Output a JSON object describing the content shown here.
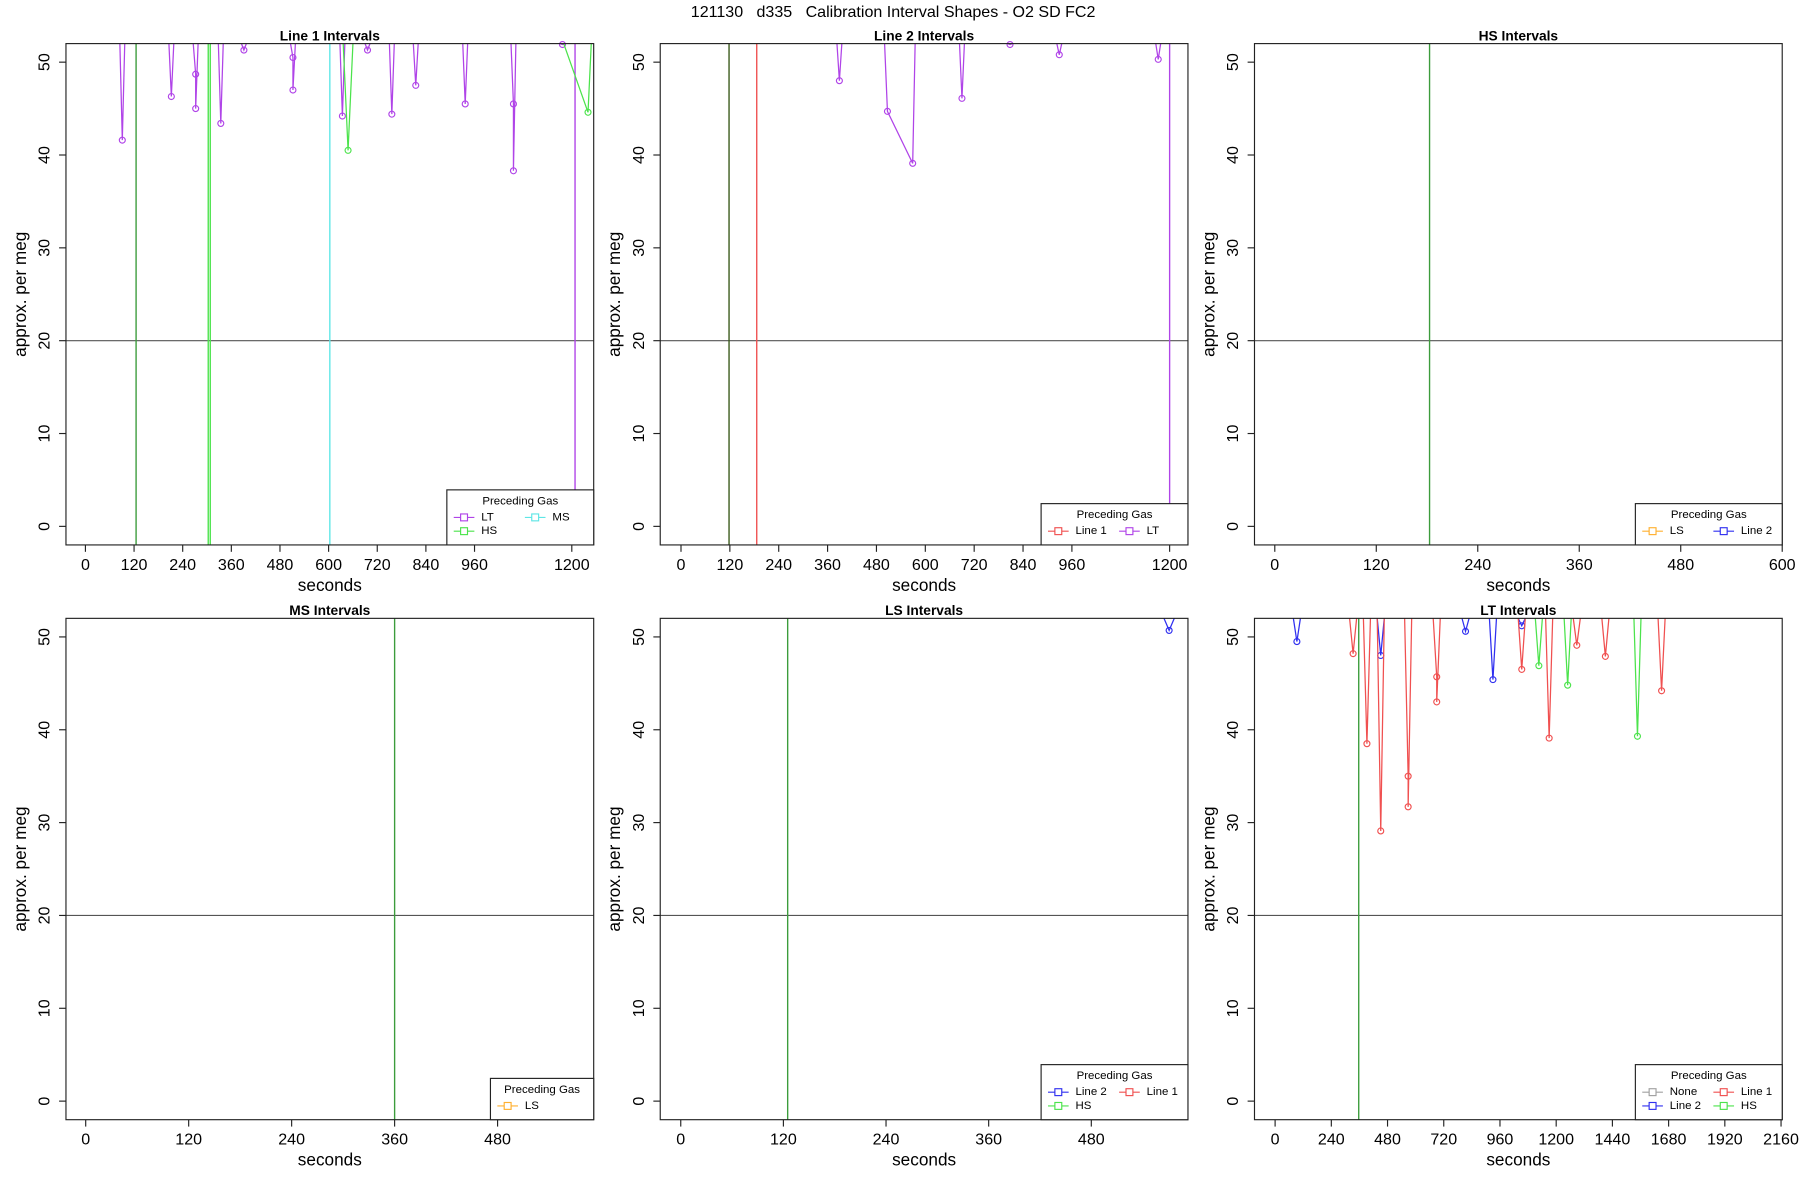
{
  "title": "121130   d335   Calibration Interval Shapes - O2 SD FC2",
  "chart_data": [
    {
      "type": "line",
      "title": "Line 1 Intervals",
      "x_label": "seconds",
      "y_label": "approx. per meg",
      "xlim": [
        -48,
        1254
      ],
      "ylim": [
        -2,
        52
      ],
      "xticks": [
        0,
        120,
        240,
        360,
        480,
        600,
        720,
        840,
        960,
        1200
      ],
      "yticks": [
        0,
        10,
        20,
        30,
        40,
        50
      ],
      "hline": 20,
      "legend_title": "Preceding Gas",
      "legend_position": "bottomright",
      "vlines": [
        {
          "x": 125,
          "color": "#3c9c3c"
        },
        {
          "x": 303,
          "color": "#4ce34c"
        },
        {
          "x": 308,
          "color": "#4ce34c"
        },
        {
          "x": 603,
          "color": "#5ee6e6"
        },
        {
          "x": 1208,
          "color": "#b044e8"
        }
      ],
      "series": [
        {
          "name": "LT",
          "color": "#b044e8",
          "x": [
            85,
            91,
            97,
            null,
            206,
            212,
            218,
            null,
            266,
            272,
            272,
            278,
            null,
            328,
            334,
            340,
            null,
            385,
            391,
            397,
            null,
            506,
            512,
            512,
            518,
            null,
            628,
            634,
            640,
            null,
            690,
            696,
            702,
            null,
            750,
            756,
            762,
            null,
            809,
            815,
            821,
            null,
            931,
            937,
            943,
            null,
            1050,
            1056,
            1056,
            1062,
            null,
            1171,
            1177,
            1183
          ],
          "values": [
            52,
            41.6,
            52,
            null,
            52,
            46.3,
            52,
            null,
            52,
            48.7,
            45,
            52,
            null,
            52,
            43.4,
            52,
            null,
            52,
            51.3,
            52,
            null,
            52,
            50.5,
            47,
            52,
            null,
            52,
            44.2,
            52,
            null,
            52,
            51.3,
            52,
            null,
            52,
            44.4,
            52,
            null,
            52,
            47.5,
            52,
            null,
            52,
            45.5,
            52,
            null,
            52,
            45.5,
            38.3,
            52,
            null,
            52,
            51.9,
            52
          ]
        },
        {
          "name": "HS",
          "color": "#4ce34c",
          "x": [
            636,
            648,
            660,
            null,
            1180,
            1240,
            1248
          ],
          "values": [
            52,
            40.5,
            52,
            null,
            52,
            44.6,
            52
          ]
        },
        {
          "name": "MS",
          "color": "#5ee6e6",
          "x": [],
          "values": []
        }
      ]
    },
    {
      "type": "line",
      "title": "Line 2 Intervals",
      "x_label": "seconds",
      "y_label": "approx. per meg",
      "xlim": [
        -51,
        1245
      ],
      "ylim": [
        -2,
        52
      ],
      "xticks": [
        0,
        120,
        240,
        360,
        480,
        600,
        720,
        840,
        960,
        1200
      ],
      "yticks": [
        0,
        10,
        20,
        30,
        40,
        50
      ],
      "hline": 20,
      "legend_title": "Preceding Gas",
      "legend_position": "bottomright",
      "vlines": [
        {
          "x": 118,
          "color": "#3a5a1a"
        },
        {
          "x": 186,
          "color": "#f05050"
        },
        {
          "x": 1200,
          "color": "#b044e8"
        }
      ],
      "series": [
        {
          "name": "Line 1",
          "color": "#f05050",
          "x": [],
          "values": []
        },
        {
          "name": "LT",
          "color": "#b044e8",
          "x": [
            383,
            389,
            395,
            null,
            500,
            507,
            569,
            575,
            null,
            684,
            690,
            696,
            null,
            802,
            808,
            814,
            null,
            923,
            929,
            935,
            null,
            1166,
            1172,
            1178
          ],
          "values": [
            52,
            48,
            52,
            null,
            52,
            44.7,
            39.1,
            52,
            null,
            52,
            46.1,
            52,
            null,
            52,
            51.9,
            52,
            null,
            52,
            50.8,
            52,
            null,
            52,
            50.3,
            52
          ]
        }
      ]
    },
    {
      "type": "line",
      "title": "HS Intervals",
      "x_label": "seconds",
      "y_label": "approx. per meg",
      "xlim": [
        -24,
        600
      ],
      "ylim": [
        -2,
        52
      ],
      "xticks": [
        0,
        120,
        240,
        360,
        480,
        600
      ],
      "yticks": [
        0,
        10,
        20,
        30,
        40,
        50
      ],
      "hline": 20,
      "legend_title": "Preceding Gas",
      "legend_position": "bottomright",
      "vlines": [
        {
          "x": 183,
          "color": "#3c9c3c"
        }
      ],
      "series": [
        {
          "name": "LS",
          "color": "#ffb030",
          "x": [],
          "values": []
        },
        {
          "name": "Line 2",
          "color": "#3030f0",
          "x": [],
          "values": []
        }
      ]
    },
    {
      "type": "line",
      "title": "MS Intervals",
      "x_label": "seconds",
      "y_label": "approx. per meg",
      "xlim": [
        -23,
        592
      ],
      "ylim": [
        -2,
        52
      ],
      "xticks": [
        0,
        120,
        240,
        360,
        480
      ],
      "yticks": [
        0,
        10,
        20,
        30,
        40,
        50
      ],
      "hline": 20,
      "legend_title": "Preceding Gas",
      "legend_position": "bottomright",
      "vlines": [
        {
          "x": 360,
          "color": "#3c9c3c"
        }
      ],
      "series": [
        {
          "name": "LS",
          "color": "#ffb030",
          "x": [],
          "values": []
        }
      ]
    },
    {
      "type": "line",
      "title": "LS Intervals",
      "x_label": "seconds",
      "y_label": "approx. per meg",
      "xlim": [
        -24,
        593
      ],
      "ylim": [
        -2,
        52
      ],
      "xticks": [
        0,
        120,
        240,
        360,
        480
      ],
      "yticks": [
        0,
        10,
        20,
        30,
        40,
        50
      ],
      "hline": 20,
      "legend_title": "Preceding Gas",
      "legend_position": "bottomright",
      "vlines": [
        {
          "x": 125,
          "color": "#3c9c3c"
        }
      ],
      "series": [
        {
          "name": "Line 2",
          "color": "#3030f0",
          "x": [
            565,
            571,
            577
          ],
          "values": [
            52,
            50.7,
            52
          ]
        },
        {
          "name": "HS",
          "color": "#4ce34c",
          "x": [],
          "values": []
        },
        {
          "name": "Line 1",
          "color": "#f05050",
          "x": [],
          "values": []
        }
      ]
    },
    {
      "type": "line",
      "title": "LT Intervals",
      "x_label": "seconds",
      "y_label": "approx. per meg",
      "xlim": [
        -88,
        2165
      ],
      "ylim": [
        -2,
        52
      ],
      "xticks": [
        0,
        240,
        480,
        720,
        960,
        1200,
        1440,
        1680,
        1920,
        2160
      ],
      "yticks": [
        0,
        10,
        20,
        30,
        40,
        50
      ],
      "hline": 20,
      "legend_title": "Preceding Gas",
      "legend_position": "bottomright",
      "vlines": [
        {
          "x": 357,
          "color": "#3c9c3c"
        }
      ],
      "series": [
        {
          "name": "None",
          "color": "#a0a0a0",
          "x": [],
          "values": []
        },
        {
          "name": "Line 2",
          "color": "#3030f0",
          "x": [
            78,
            93,
            108,
            null,
            436,
            451,
            466,
            null,
            798,
            813,
            828,
            null,
            915,
            930,
            945,
            null,
            1038,
            1053,
            1068
          ],
          "values": [
            52,
            49.5,
            52,
            null,
            52,
            48,
            52,
            null,
            52,
            50.6,
            52,
            null,
            52,
            45.4,
            52,
            null,
            52,
            51.2,
            52
          ]
        },
        {
          "name": "Line 1",
          "color": "#f05050",
          "x": [
            318,
            333,
            348,
            null,
            377,
            392,
            407,
            null,
            436,
            451,
            466,
            null,
            553,
            568,
            568,
            583,
            null,
            675,
            690,
            690,
            705,
            null,
            1038,
            1053,
            1068,
            null,
            1155,
            1170,
            1185,
            null,
            1273,
            1288,
            1303,
            null,
            1395,
            1410,
            1425,
            null,
            1635,
            1650,
            1665
          ],
          "values": [
            52,
            48.2,
            52,
            null,
            52,
            38.5,
            52,
            null,
            52,
            29.1,
            52,
            null,
            52,
            35,
            31.7,
            52,
            null,
            52,
            45.7,
            43,
            52,
            null,
            52,
            46.5,
            52,
            null,
            52,
            39.1,
            52,
            null,
            52,
            49.1,
            52,
            null,
            52,
            47.9,
            52,
            null,
            52,
            44.2,
            52
          ]
        },
        {
          "name": "HS",
          "color": "#4ce34c",
          "x": [
            1111,
            1126,
            1141,
            null,
            1234,
            1249,
            1264,
            null,
            1532,
            1547,
            1562
          ],
          "values": [
            52,
            46.9,
            52,
            null,
            52,
            44.8,
            52,
            null,
            52,
            39.3,
            52
          ]
        }
      ]
    }
  ]
}
